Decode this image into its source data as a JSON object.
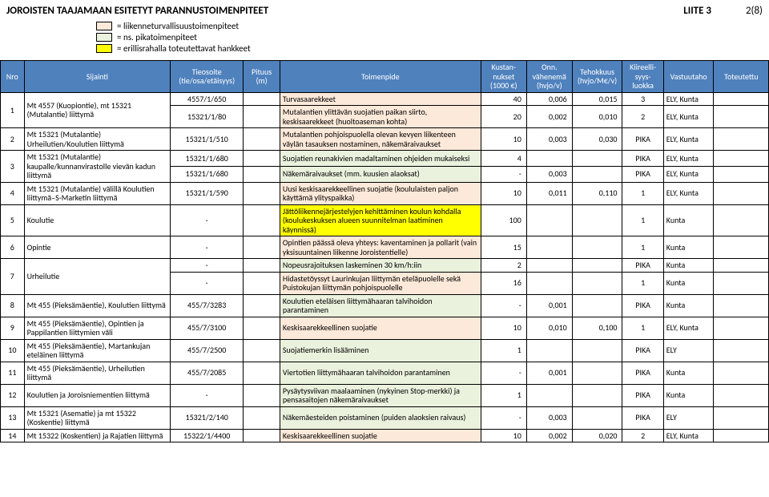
{
  "title": "JOROISTEN TAAJAMAAN ESITETYT PARANNUSTOIMENPITEET",
  "liite": "LIITE 3",
  "page": "2(8)",
  "legend": {
    "safety": "= liikenneturvallisuustoimenpiteet",
    "pika": "= ns. pikatoimenpiteet",
    "eril": "= erillisrahalla toteutettavat hankkeet"
  },
  "legend_colors": {
    "safety": "#fde9d9",
    "pika": "#eaf1dd",
    "eril": "#ffff00"
  },
  "header_bg": "#4f81bd",
  "headers": {
    "nro": "Nro",
    "sijainti": "Sijainti",
    "tieosoite": "Tieosoite (tie/osa/etäisyys)",
    "pituus": "Pituus (m)",
    "toimenpide": "Toimenpide",
    "kustan": "Kustan-nukset (1000 €)",
    "onn": "Onn. vähenemä (hvjo/v)",
    "tehokkuus": "Tehokkuus (hvjo/M€/v)",
    "kiireeli": "Kiireelli-syys-luokka",
    "vastuu": "Vastuutaho",
    "toteutettu": "Toteutettu"
  },
  "rows": [
    {
      "nro": "1",
      "span": 2,
      "sij": "Mt 4557 (Kuopiontie), mt 15321 (Mutalantie) liittymä",
      "sub": [
        {
          "tie": "4557/1/650",
          "pit": "",
          "toi": "Turvasaarekkeet",
          "kus": "40",
          "onn": "0,006",
          "teh": "0,015",
          "kii": "3",
          "vas": "ELY, Kunta",
          "fill": "safety"
        },
        {
          "tie": "15321/1/80",
          "pit": "",
          "toi": "Mutalantien ylittävän suojatien paikan siirto, keskisaarekkeet (huoltoaseman kohta)",
          "kus": "20",
          "onn": "0,002",
          "teh": "0,010",
          "kii": "2",
          "vas": "ELY, Kunta",
          "fill": "safety"
        }
      ]
    },
    {
      "nro": "2",
      "sij": "Mt 15321 (Mutalantie) Urheilutien/Koulutien liittymä",
      "tie": "15321/1/510",
      "pit": "",
      "toi": "Mutalantien pohjoispuolella olevan kevyen liikenteen väylän tasauksen nostaminen, näkemäraivaukset",
      "kus": "10",
      "onn": "0,003",
      "teh": "0,030",
      "kii": "PIKA",
      "vas": "ELY, Kunta",
      "fill": "safety"
    },
    {
      "nro": "3",
      "span": 2,
      "sij": "Mt 15321 (Mutalantie) kaupalle/kunnanvirastolle vievän kadun liittymä",
      "sub": [
        {
          "tie": "15321/1/680",
          "pit": "",
          "toi": "Suojatien reunakivien madaltaminen ohjeiden mukaiseksi",
          "kus": "4",
          "onn": "",
          "teh": "",
          "kii": "PIKA",
          "vas": "ELY, Kunta",
          "fill": "pika"
        },
        {
          "tie": "15321/1/680",
          "pit": "",
          "toi": "Näkemäraivaukset (mm. kuusien alaoksat)",
          "kus": "-",
          "onn": "0,003",
          "teh": "",
          "kii": "PIKA",
          "vas": "ELY, Kunta",
          "fill": "pika"
        }
      ]
    },
    {
      "nro": "4",
      "sij": "Mt 15321 (Mutalantie) välillä Koulutien liittymä–S-Marketin liittymä",
      "tie": "15321/1/590",
      "pit": "",
      "toi": "Uusi keskisaarekkeellinen suojatie (koululaisten paljon käyttämä ylityspaikka)",
      "kus": "10",
      "onn": "0,011",
      "teh": "0,110",
      "kii": "1",
      "vas": "ELY, Kunta",
      "fill": "safety"
    },
    {
      "nro": "5",
      "sij": "Koulutie",
      "tie": "-",
      "pit": "",
      "toi": "Jättöliikennejärjestelyjen kehittäminen koulun kohdalla (koulukeskuksen alueen suunnitelman laatiminen käynnissä)",
      "kus": "100",
      "onn": "",
      "teh": "",
      "kii": "1",
      "vas": "Kunta",
      "fill": "eril"
    },
    {
      "nro": "6",
      "sij": "Opintie",
      "tie": "-",
      "pit": "",
      "toi": "Opintien päässä oleva yhteys: kaventaminen ja pollarit (vain yksisuuntainen liikenne Joroistentielle)",
      "kus": "15",
      "onn": "",
      "teh": "",
      "kii": "1",
      "vas": "Kunta",
      "fill": "safety"
    },
    {
      "nro": "7",
      "span": 2,
      "sij": "Urheilutie",
      "sub": [
        {
          "tie": "-",
          "pit": "",
          "toi": "Nopeusrajoituksen laskeminen 30 km/h:iin",
          "kus": "2",
          "onn": "",
          "teh": "",
          "kii": "PIKA",
          "vas": "Kunta",
          "fill": "pika"
        },
        {
          "tie": "-",
          "pit": "",
          "toi": "Hidastetöyssyt Laurinkujan liittymän eteläpuolelle sekä Puistokujan liittymän pohjoispuolelle",
          "kus": "16",
          "onn": "",
          "teh": "",
          "kii": "1",
          "vas": "Kunta",
          "fill": "safety"
        }
      ]
    },
    {
      "nro": "8",
      "sij": "Mt 455 (Pieksämäentie), Koulutien liittymä",
      "tie": "455/7/3283",
      "pit": "",
      "toi": "Koulutien eteläisen liittymähaaran talvihoidon parantaminen",
      "kus": "-",
      "onn": "0,001",
      "teh": "",
      "kii": "PIKA",
      "vas": "Kunta",
      "fill": "pika"
    },
    {
      "nro": "9",
      "sij": "Mt 455 (Pieksämäentie), Opintien ja Pappilantien liittymien väli",
      "tie": "455/7/3100",
      "pit": "",
      "toi": "Keskisaarekkeellinen suojatie",
      "kus": "10",
      "onn": "0,010",
      "teh": "0,100",
      "kii": "1",
      "vas": "ELY, Kunta",
      "fill": "safety"
    },
    {
      "nro": "10",
      "sij": "Mt 455 (Pieksämäentie), Martankujan eteläinen liittymä",
      "tie": "455/7/2500",
      "pit": "",
      "toi": "Suojatiemerkin lisääminen",
      "kus": "1",
      "onn": "",
      "teh": "",
      "kii": "PIKA",
      "vas": "ELY",
      "fill": "pika"
    },
    {
      "nro": "11",
      "sij": "Mt 455 (Pieksämäentie), Urheilutien liittymä",
      "tie": "455/7/2085",
      "pit": "",
      "toi": "Viertotien liittymähaaran talvihoidon parantaminen",
      "kus": "-",
      "onn": "0,001",
      "teh": "",
      "kii": "PIKA",
      "vas": "Kunta",
      "fill": "pika"
    },
    {
      "nro": "12",
      "sij": "Koulutien ja Joroisniementien liittymä",
      "tie": "-",
      "pit": "",
      "toi": "Pysäytysviivan maalaaminen (nykyinen Stop-merkki) ja pensasaitojen näkemäraivaukset",
      "kus": "1",
      "onn": "",
      "teh": "",
      "kii": "PIKA",
      "vas": "Kunta",
      "fill": "pika"
    },
    {
      "nro": "13",
      "sij": "Mt 15321 (Asematie) ja mt 15322 (Koskentie) liittymä",
      "tie": "15321/2/140",
      "pit": "",
      "toi": "Näkemäesteiden poistaminen (puiden alaoksien raivaus)",
      "kus": "-",
      "onn": "0,003",
      "teh": "",
      "kii": "PIKA",
      "vas": "ELY",
      "fill": "pika"
    },
    {
      "nro": "14",
      "sij": "Mt 15322 (Koskentien) ja Rajatien liittymä",
      "tie": "15322/1/4400",
      "pit": "",
      "toi": "Keskisaarekkeellinen suojatie",
      "kus": "10",
      "onn": "0,002",
      "teh": "0,020",
      "kii": "2",
      "vas": "ELY, Kunta",
      "fill": "safety"
    }
  ]
}
